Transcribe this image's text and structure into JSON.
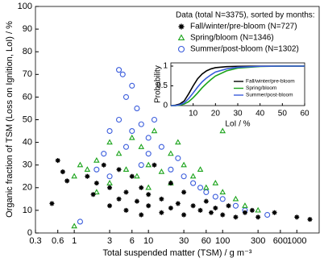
{
  "chart_data": [
    {
      "type": "scatter",
      "xlabel": "Total suspended matter (TSM) / g m⁻³",
      "ylabel": "Organic fraction of TSM (Loss on Ignition, LoI) / %",
      "legend_title": "Data (total N=3375), sorted by months:",
      "legend": "upper right",
      "xscale": "log",
      "xlim": [
        0.3,
        2000
      ],
      "ylim": [
        0,
        100
      ],
      "xticks": [
        0.3,
        0.6,
        1,
        3,
        6,
        10,
        30,
        60,
        100,
        300,
        600,
        1000
      ],
      "yticks": [
        0,
        10,
        20,
        30,
        40,
        50,
        60,
        70,
        80,
        90,
        100
      ],
      "series": [
        {
          "name": "Fall/winter/pre-bloom (N=727)",
          "color": "#000000",
          "marker": "asterisk",
          "x": [
            0.5,
            0.6,
            0.7,
            0.8,
            1.5,
            1.8,
            2,
            2.5,
            3,
            3,
            4,
            4,
            5,
            5,
            6,
            7,
            8,
            8,
            10,
            10,
            12,
            15,
            15,
            20,
            20,
            25,
            30,
            30,
            40,
            50,
            60,
            70,
            80,
            100,
            120,
            150,
            200,
            250,
            300,
            500,
            1000,
            1500
          ],
          "values": [
            13,
            32,
            27,
            23,
            25,
            17,
            22,
            30,
            12,
            20,
            15,
            28,
            10,
            18,
            25,
            14,
            8,
            20,
            12,
            17,
            30,
            9,
            15,
            11,
            22,
            13,
            8,
            18,
            12,
            10,
            14,
            9,
            11,
            8,
            12,
            7,
            9,
            10,
            7,
            9,
            7,
            6
          ]
        },
        {
          "name": "Spring/bloom (N=1346)",
          "color": "#1aa31a",
          "marker": "triangle",
          "x": [
            1,
            1.2,
            1.5,
            2,
            2,
            3,
            3,
            4,
            5,
            6,
            7,
            8,
            10,
            10,
            12,
            15,
            20,
            20,
            25,
            30,
            40,
            50,
            60,
            80,
            100,
            100,
            150,
            200,
            300,
            1
          ],
          "values": [
            25,
            30,
            28,
            32,
            18,
            40,
            22,
            35,
            28,
            42,
            25,
            38,
            30,
            20,
            45,
            27,
            35,
            22,
            40,
            30,
            25,
            28,
            20,
            22,
            45,
            18,
            15,
            12,
            10,
            3
          ]
        },
        {
          "name": "Summer/post-bloom (N=1302)",
          "color": "#3a5cdc",
          "marker": "circle",
          "x": [
            1.2,
            2,
            2.5,
            3,
            3,
            4,
            4,
            4.5,
            5,
            5,
            6,
            6,
            7,
            8,
            8,
            10,
            10,
            12,
            15,
            20,
            25,
            30,
            40,
            50,
            60,
            80,
            100,
            150,
            200,
            400
          ],
          "values": [
            5,
            28,
            35,
            45,
            25,
            72,
            50,
            70,
            60,
            38,
            65,
            45,
            55,
            30,
            48,
            42,
            35,
            50,
            38,
            28,
            33,
            25,
            22,
            20,
            18,
            16,
            15,
            12,
            10,
            8
          ]
        }
      ]
    },
    {
      "type": "line",
      "xlabel": "LoI / %",
      "ylabel": "Probability",
      "xlim": [
        0,
        60
      ],
      "ylim": [
        0,
        1
      ],
      "xticks": [
        10,
        20,
        30,
        40,
        50,
        60
      ],
      "yticks": [
        0,
        0.5,
        1
      ],
      "x": [
        0,
        2,
        4,
        6,
        8,
        10,
        12,
        14,
        16,
        18,
        20,
        25,
        30,
        40,
        50,
        60
      ],
      "series": [
        {
          "name": "Fall/winter/pre-bloom",
          "color": "#000000",
          "values": [
            0,
            0.01,
            0.04,
            0.12,
            0.3,
            0.5,
            0.68,
            0.8,
            0.88,
            0.93,
            0.96,
            0.985,
            0.995,
            1,
            1,
            1
          ]
        },
        {
          "name": "Spring/bloom",
          "color": "#1aa31a",
          "values": [
            0,
            0,
            0.01,
            0.04,
            0.1,
            0.2,
            0.32,
            0.45,
            0.56,
            0.66,
            0.75,
            0.88,
            0.95,
            0.99,
            1,
            1
          ]
        },
        {
          "name": "Summer/post-bloom",
          "color": "#3a5cdc",
          "values": [
            0,
            0,
            0.02,
            0.07,
            0.18,
            0.32,
            0.47,
            0.6,
            0.7,
            0.78,
            0.85,
            0.93,
            0.97,
            0.995,
            1,
            1
          ]
        }
      ]
    }
  ]
}
